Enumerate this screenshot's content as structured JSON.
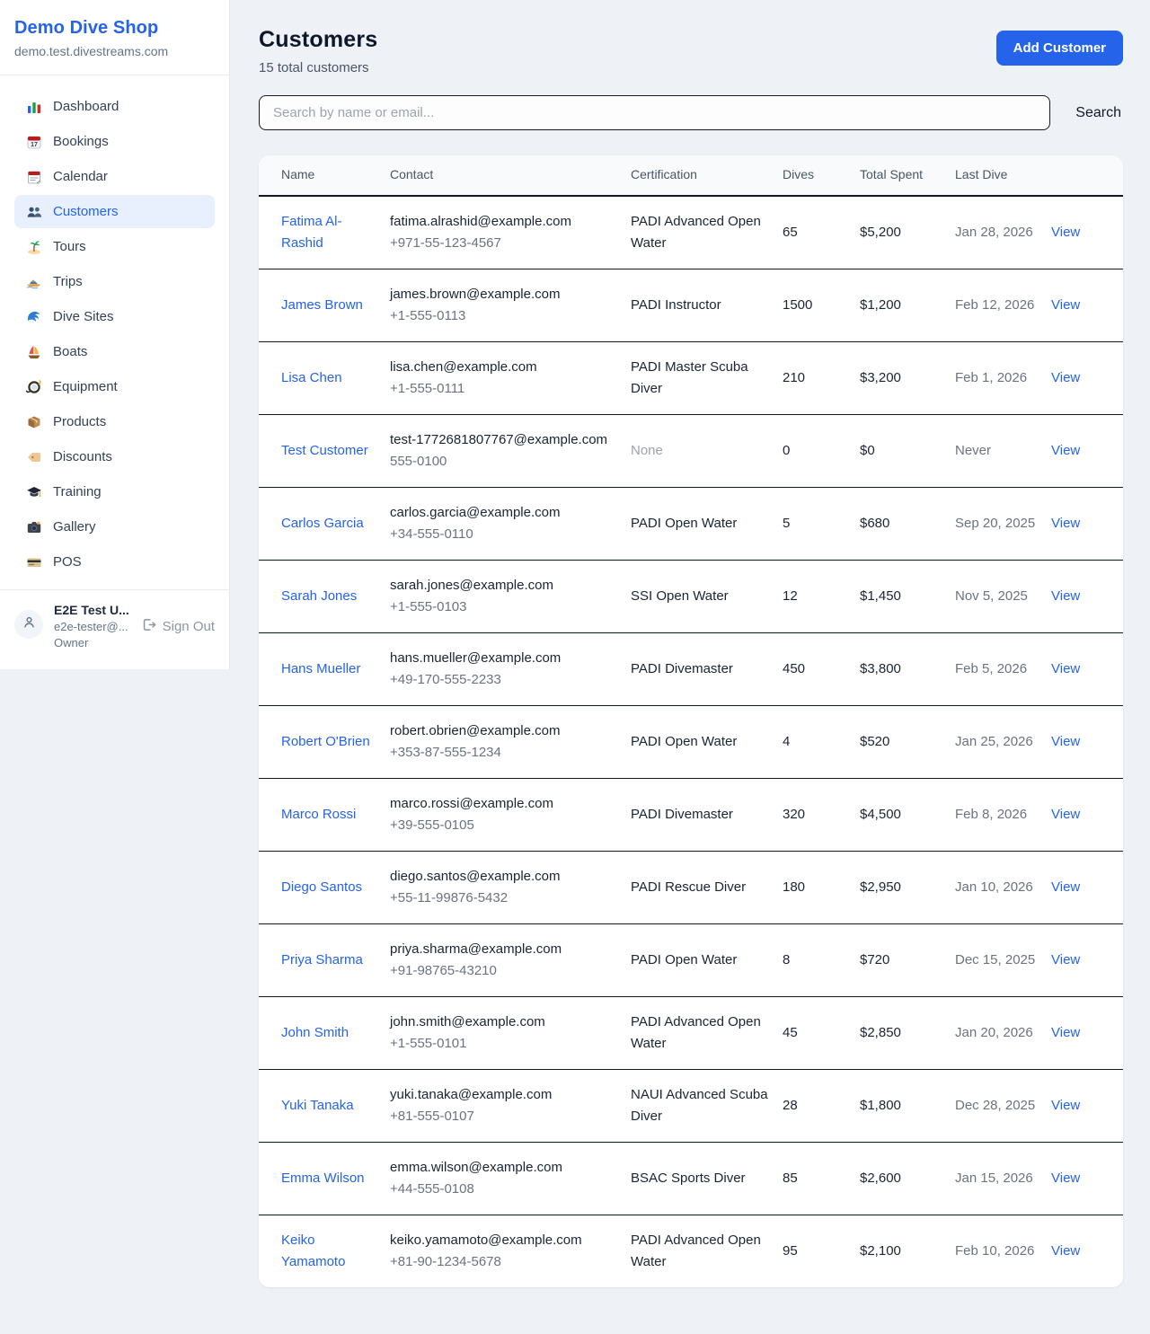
{
  "colors": {
    "accent": "#2563eb",
    "active_nav_bg": "#e8f0fe",
    "page_bg": "#eef1f6",
    "table_border": "#101828",
    "muted_text": "#6b7280"
  },
  "sidebar": {
    "brand": {
      "title": "Demo Dive Shop",
      "domain": "demo.test.divestreams.com"
    },
    "nav": [
      {
        "label": "Dashboard",
        "icon": "bar-chart-icon",
        "active": false
      },
      {
        "label": "Bookings",
        "icon": "calendar-date-icon",
        "active": false
      },
      {
        "label": "Calendar",
        "icon": "calendar-icon",
        "active": false
      },
      {
        "label": "Customers",
        "icon": "users-icon",
        "active": true
      },
      {
        "label": "Tours",
        "icon": "island-icon",
        "active": false
      },
      {
        "label": "Trips",
        "icon": "speedboat-icon",
        "active": false
      },
      {
        "label": "Dive Sites",
        "icon": "wave-icon",
        "active": false
      },
      {
        "label": "Boats",
        "icon": "sailboat-icon",
        "active": false
      },
      {
        "label": "Equipment",
        "icon": "diving-mask-icon",
        "active": false
      },
      {
        "label": "Products",
        "icon": "package-icon",
        "active": false
      },
      {
        "label": "Discounts",
        "icon": "tag-icon",
        "active": false
      },
      {
        "label": "Training",
        "icon": "grad-cap-icon",
        "active": false
      },
      {
        "label": "Gallery",
        "icon": "camera-icon",
        "active": false
      },
      {
        "label": "POS",
        "icon": "credit-card-icon",
        "active": false
      }
    ],
    "user": {
      "name": "E2E Test U...",
      "email": "e2e-tester@...",
      "role": "Owner",
      "sign_out_label": "Sign Out"
    }
  },
  "header": {
    "title": "Customers",
    "subtitle": "15 total customers",
    "add_button_label": "Add Customer"
  },
  "search": {
    "placeholder": "Search by name or email...",
    "value": "",
    "button_label": "Search"
  },
  "table": {
    "columns": [
      "Name",
      "Contact",
      "Certification",
      "Dives",
      "Total Spent",
      "Last Dive"
    ],
    "view_label": "View",
    "rows": [
      {
        "name": "Fatima Al-Rashid",
        "email": "fatima.alrashid@example.com",
        "phone": "+971-55-123-4567",
        "certification": "PADI Advanced Open Water",
        "dives": "65",
        "total_spent": "$5,200",
        "last_dive": "Jan 28, 2026"
      },
      {
        "name": "James Brown",
        "email": "james.brown@example.com",
        "phone": "+1-555-0113",
        "certification": "PADI Instructor",
        "dives": "1500",
        "total_spent": "$1,200",
        "last_dive": "Feb 12, 2026"
      },
      {
        "name": "Lisa Chen",
        "email": "lisa.chen@example.com",
        "phone": "+1-555-0111",
        "certification": "PADI Master Scuba Diver",
        "dives": "210",
        "total_spent": "$3,200",
        "last_dive": "Feb 1, 2026"
      },
      {
        "name": "Test Customer",
        "email": "test-1772681807767@example.com",
        "phone": "555-0100",
        "certification": "None",
        "dives": "0",
        "total_spent": "$0",
        "last_dive": "Never"
      },
      {
        "name": "Carlos Garcia",
        "email": "carlos.garcia@example.com",
        "phone": "+34-555-0110",
        "certification": "PADI Open Water",
        "dives": "5",
        "total_spent": "$680",
        "last_dive": "Sep 20, 2025"
      },
      {
        "name": "Sarah Jones",
        "email": "sarah.jones@example.com",
        "phone": "+1-555-0103",
        "certification": "SSI Open Water",
        "dives": "12",
        "total_spent": "$1,450",
        "last_dive": "Nov 5, 2025"
      },
      {
        "name": "Hans Mueller",
        "email": "hans.mueller@example.com",
        "phone": "+49-170-555-2233",
        "certification": "PADI Divemaster",
        "dives": "450",
        "total_spent": "$3,800",
        "last_dive": "Feb 5, 2026"
      },
      {
        "name": "Robert O'Brien",
        "email": "robert.obrien@example.com",
        "phone": "+353-87-555-1234",
        "certification": "PADI Open Water",
        "dives": "4",
        "total_spent": "$520",
        "last_dive": "Jan 25, 2026"
      },
      {
        "name": "Marco Rossi",
        "email": "marco.rossi@example.com",
        "phone": "+39-555-0105",
        "certification": "PADI Divemaster",
        "dives": "320",
        "total_spent": "$4,500",
        "last_dive": "Feb 8, 2026"
      },
      {
        "name": "Diego Santos",
        "email": "diego.santos@example.com",
        "phone": "+55-11-99876-5432",
        "certification": "PADI Rescue Diver",
        "dives": "180",
        "total_spent": "$2,950",
        "last_dive": "Jan 10, 2026"
      },
      {
        "name": "Priya Sharma",
        "email": "priya.sharma@example.com",
        "phone": "+91-98765-43210",
        "certification": "PADI Open Water",
        "dives": "8",
        "total_spent": "$720",
        "last_dive": "Dec 15, 2025"
      },
      {
        "name": "John Smith",
        "email": "john.smith@example.com",
        "phone": "+1-555-0101",
        "certification": "PADI Advanced Open Water",
        "dives": "45",
        "total_spent": "$2,850",
        "last_dive": "Jan 20, 2026"
      },
      {
        "name": "Yuki Tanaka",
        "email": "yuki.tanaka@example.com",
        "phone": "+81-555-0107",
        "certification": "NAUI Advanced Scuba Diver",
        "dives": "28",
        "total_spent": "$1,800",
        "last_dive": "Dec 28, 2025"
      },
      {
        "name": "Emma Wilson",
        "email": "emma.wilson@example.com",
        "phone": "+44-555-0108",
        "certification": "BSAC Sports Diver",
        "dives": "85",
        "total_spent": "$2,600",
        "last_dive": "Jan 15, 2026"
      },
      {
        "name": "Keiko Yamamoto",
        "email": "keiko.yamamoto@example.com",
        "phone": "+81-90-1234-5678",
        "certification": "PADI Advanced Open Water",
        "dives": "95",
        "total_spent": "$2,100",
        "last_dive": "Feb 10, 2026"
      }
    ]
  }
}
